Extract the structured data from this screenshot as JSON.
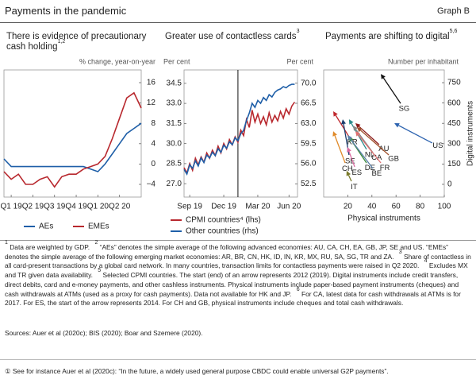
{
  "header": {
    "title": "Payments in the pandemic",
    "graph_label": "Graph B"
  },
  "chart_data": [
    {
      "type": "line",
      "title": "There is evidence of  precautionary cash holding",
      "title_note": "1,2",
      "subtitle": "% change, year-on-year",
      "x": [
        0,
        1,
        2,
        3,
        4,
        5,
        6,
        7,
        8,
        9,
        10,
        11,
        12,
        13,
        14,
        15,
        16,
        17,
        18,
        19
      ],
      "xlim": [
        0,
        19
      ],
      "xticks": [
        {
          "value": 1,
          "label": "Q1 19"
        },
        {
          "value": 4,
          "label": "Q2 19"
        },
        {
          "value": 7,
          "label": "Q3 19"
        },
        {
          "value": 10,
          "label": "Q4 19"
        },
        {
          "value": 13,
          "label": "Q1 20"
        },
        {
          "value": 16,
          "label": "Q2 20"
        }
      ],
      "ylim": [
        -6.5,
        18.5
      ],
      "yticks": [
        16,
        12,
        8,
        4,
        0,
        {
          "value": -4,
          "label": "−4"
        }
      ],
      "series": [
        {
          "name": "AEs",
          "color": "#1f5fa8",
          "values": [
            1,
            -0.5,
            -0.5,
            -0.5,
            -0.5,
            -0.5,
            -0.5,
            -0.5,
            -0.5,
            -0.5,
            -0.5,
            -0.5,
            -1,
            -1.5,
            0,
            2,
            4,
            6,
            7,
            8
          ]
        },
        {
          "name": "EMEs",
          "color": "#b8282e",
          "values": [
            -1.5,
            -3,
            -2,
            -4,
            -4,
            -3,
            -2.5,
            -4.5,
            -2.5,
            -2,
            -2,
            -1,
            -0.5,
            0,
            1.5,
            5,
            9,
            13,
            14,
            11
          ]
        }
      ]
    },
    {
      "type": "line",
      "title": "Greater use of contactless cards",
      "title_note": "3",
      "ylabel": "Per cent",
      "y2label": "Per cent",
      "x": [
        0,
        1,
        2,
        3,
        4,
        5,
        6,
        7,
        8,
        9,
        10,
        11,
        12,
        13,
        14,
        15,
        16,
        17,
        18,
        19,
        20,
        21,
        22,
        23,
        24,
        25,
        26,
        27,
        28,
        29,
        30,
        31,
        32,
        33,
        34,
        35,
        36,
        37,
        38,
        39
      ],
      "xlim": [
        0,
        40
      ],
      "xticks": [
        {
          "value": 2,
          "label": "Sep 19"
        },
        {
          "value": 14,
          "label": "Dec 19"
        },
        {
          "value": 26,
          "label": "Mar 20"
        },
        {
          "value": 37,
          "label": "Jun 20"
        }
      ],
      "vline": 19,
      "ylim": [
        26,
        35.5
      ],
      "yticks": [
        34.5,
        {
          "value": 33,
          "label": "33.0"
        },
        31.5,
        {
          "value": 30,
          "label": "30.0"
        },
        28.5,
        {
          "value": 27,
          "label": "27.0"
        }
      ],
      "y2lim": [
        50.2,
        72.3
      ],
      "y2ticks": [
        {
          "value": 70,
          "label": "70.0"
        },
        66.5,
        {
          "value": 63,
          "label": "63.0"
        },
        59.5,
        {
          "value": 56,
          "label": "56.0"
        },
        52.5
      ],
      "series": [
        {
          "name": "CPMI countries⁴ (lhs)",
          "color": "#b8282e",
          "values": [
            28.2,
            27.8,
            28.5,
            28.0,
            28.9,
            28.4,
            29.0,
            28.6,
            29.3,
            28.9,
            29.5,
            29.1,
            29.8,
            29.3,
            30.0,
            29.6,
            30.3,
            29.9,
            30.5,
            30.1,
            31.0,
            30.6,
            31.8,
            31.2,
            32.5,
            31.6,
            32.2,
            31.5,
            32.0,
            31.4,
            32.3,
            31.6,
            32.1,
            31.7,
            32.4,
            31.9,
            32.6,
            32.2,
            32.8,
            33.1
          ]
        },
        {
          "name": "Other countries (rhs)",
          "color": "#1f5fa8",
          "axis": "y2",
          "values": [
            55.0,
            54.2,
            55.8,
            55.2,
            56.5,
            55.6,
            57.0,
            56.2,
            57.5,
            57.0,
            58.0,
            57.4,
            58.6,
            58.0,
            59.2,
            58.7,
            59.8,
            59.3,
            60.5,
            60.0,
            61.2,
            61.8,
            63.5,
            64.8,
            66.5,
            65.8,
            67.0,
            66.5,
            67.5,
            67.0,
            68.0,
            67.6,
            68.4,
            68.8,
            69.0,
            69.4,
            69.2,
            69.6,
            69.8,
            69.8
          ]
        }
      ]
    },
    {
      "type": "arrow",
      "title": "Payments are shifting to digital",
      "title_note": "5,6",
      "subtitle": "Number per inhabitant",
      "xlabel": "Physical instruments",
      "ylabel": "Digital instruments",
      "xlim": [
        0,
        100
      ],
      "xticks": [
        20,
        40,
        60,
        80,
        100
      ],
      "ylim": [
        -94,
        844
      ],
      "yticks": [
        750,
        600,
        450,
        300,
        150,
        0
      ],
      "series": [
        {
          "name": "SG",
          "color": "#111111",
          "x": [
            63.8,
            47.4
          ],
          "values": [
            597,
            814
          ]
        },
        {
          "name": "US",
          "color": "#2e64b0",
          "x": [
            90,
            58.6
          ],
          "values": [
            305,
            451
          ]
        },
        {
          "name": "KR",
          "color": "#c0282d",
          "x": [
            21,
            7.9
          ],
          "values": [
            351,
            539
          ]
        },
        {
          "name": "AU",
          "color": "#8b1a1a",
          "x": [
            46,
            26.3
          ],
          "values": [
            293,
            451
          ]
        },
        {
          "name": "NL",
          "color": "#2a8a8a",
          "x": [
            35.5,
            21
          ],
          "values": [
            258,
            480
          ]
        },
        {
          "name": "CA",
          "color": "#888888",
          "x": [
            40.8,
            24.3
          ],
          "values": [
            234,
            433
          ]
        },
        {
          "name": "GB",
          "color": "#a0522d",
          "x": [
            54,
            27.6
          ],
          "values": [
            217,
            422
          ]
        },
        {
          "name": "FR",
          "color": "#e07070",
          "x": [
            47.4,
            26.3
          ],
          "values": [
            158,
            392
          ]
        },
        {
          "name": "DE",
          "color": "#3a8a3a",
          "x": [
            35.5,
            21
          ],
          "values": [
            158,
            351
          ]
        },
        {
          "name": "BE",
          "color": "#5a7fa8",
          "x": [
            40.8,
            19.7
          ],
          "values": [
            117,
            363
          ]
        },
        {
          "name": "SE",
          "color": "#1c3d6e",
          "x": [
            21,
            15.8
          ],
          "values": [
            217,
            480
          ]
        },
        {
          "name": "CH",
          "color": "#e08a2a",
          "x": [
            17.8,
            7.9
          ],
          "values": [
            158,
            392
          ]
        },
        {
          "name": "ES",
          "color": "#d96aa0",
          "x": [
            25.7,
            19.7
          ],
          "values": [
            129,
            275
          ]
        },
        {
          "name": "IT",
          "color": "#7a7a2a",
          "x": [
            23,
            19
          ],
          "values": [
            23,
            100
          ]
        }
      ]
    }
  ],
  "notes": [
    {
      "mark": "1",
      "text": "Data are weighted by GDP."
    },
    {
      "mark": "2",
      "text": "“AEs” denotes the simple average of the following advanced economies: AU, CA, CH, EA, GB, JP, SE and US. “EMEs” denotes the simple average of the following emerging market economies: AR, BR, CN, HK, ID, IN, KR, MX, RU, SA, SG, TR and ZA."
    },
    {
      "mark": "3",
      "text": "Share of contactless in all card-present transactions by a global card network. In many countries, transaction limits for contactless payments were raised in Q2 2020."
    },
    {
      "mark": "4",
      "text": "Excludes MX and TR given data availability."
    },
    {
      "mark": "5",
      "text": "Selected CPMI countries. The start (end) of an arrow represents 2012 (2019). Digital instruments include credit transfers, direct debits, card and e-money payments, and other cashless instruments. Physical instruments include paper-based payment instruments (cheques) and cash withdrawals at ATMs (used as a proxy for cash payments). Data not available for HK and JP."
    },
    {
      "mark": "6",
      "text": "For CA, latest data for cash withdrawals at ATMs is for 2017. For ES, the start of the arrow represents 2014. For CH and GB, physical instruments include cheques and total cash withdrawals."
    }
  ],
  "sources": "Sources: Auer et al (2020c); BIS (2020); Boar and Szemere (2020).",
  "footer": {
    "mark": "①",
    "text": "See for instance Auer et al (2020c): “In the future, a widely used general purpose CBDC could enable universal G2P payments”."
  }
}
